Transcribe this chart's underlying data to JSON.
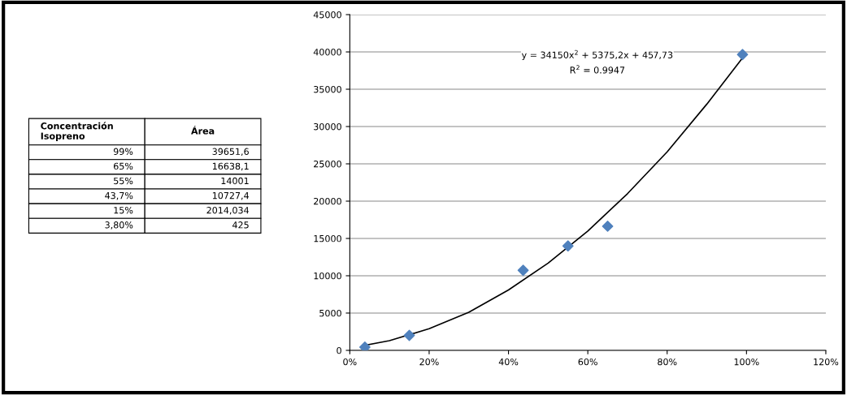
{
  "chart_data": [
    {
      "type": "other",
      "categories": [
        "Concentración\nIsopreno",
        "Área"
      ],
      "annotations": [
        "99%",
        "39651,6",
        "65%",
        "16638,1",
        "55%",
        "14001",
        "43,7%",
        "10727,4",
        "15%",
        "2014,034",
        "3,80%",
        "425"
      ]
    },
    {
      "type": "scatter",
      "series": [
        {
          "type": "scatter",
          "color": "#4f81bd",
          "marker": "diamond",
          "x": [
            99,
            65,
            55,
            43.7,
            15,
            3.8
          ],
          "values": [
            39651.6,
            16638.1,
            14001,
            10727.4,
            2014.034,
            425
          ]
        },
        {
          "type": "line",
          "color": "#000000",
          "marker": "none",
          "line_style": "solid",
          "x": [
            4,
            10,
            20,
            30,
            40,
            50,
            60,
            70,
            80,
            90,
            99
          ],
          "values": [
            700,
            1300,
            2900,
            5100,
            8100,
            11700,
            16000,
            21000,
            26600,
            33000,
            39200
          ]
        }
      ],
      "annotations": [
        "y = 34150x$^{2}$ + 5375,2x + 457,73",
        "R$^{2}$ = 0.9947"
      ],
      "xlim": [
        0,
        120
      ],
      "xticks": [
        {
          "value": 0,
          "label": "0%"
        },
        {
          "value": 20,
          "label": "20%"
        },
        {
          "value": 40,
          "label": "40%"
        },
        {
          "value": 60,
          "label": "60%"
        },
        {
          "value": 80,
          "label": "80%"
        },
        {
          "value": 100,
          "label": "100%"
        },
        {
          "value": 120,
          "label": "120%"
        }
      ],
      "ylim": [
        0,
        45000
      ],
      "yticks": [
        0,
        5000,
        10000,
        15000,
        20000,
        25000,
        30000,
        35000,
        40000,
        45000
      ],
      "grid": "y",
      "legend": false
    }
  ]
}
